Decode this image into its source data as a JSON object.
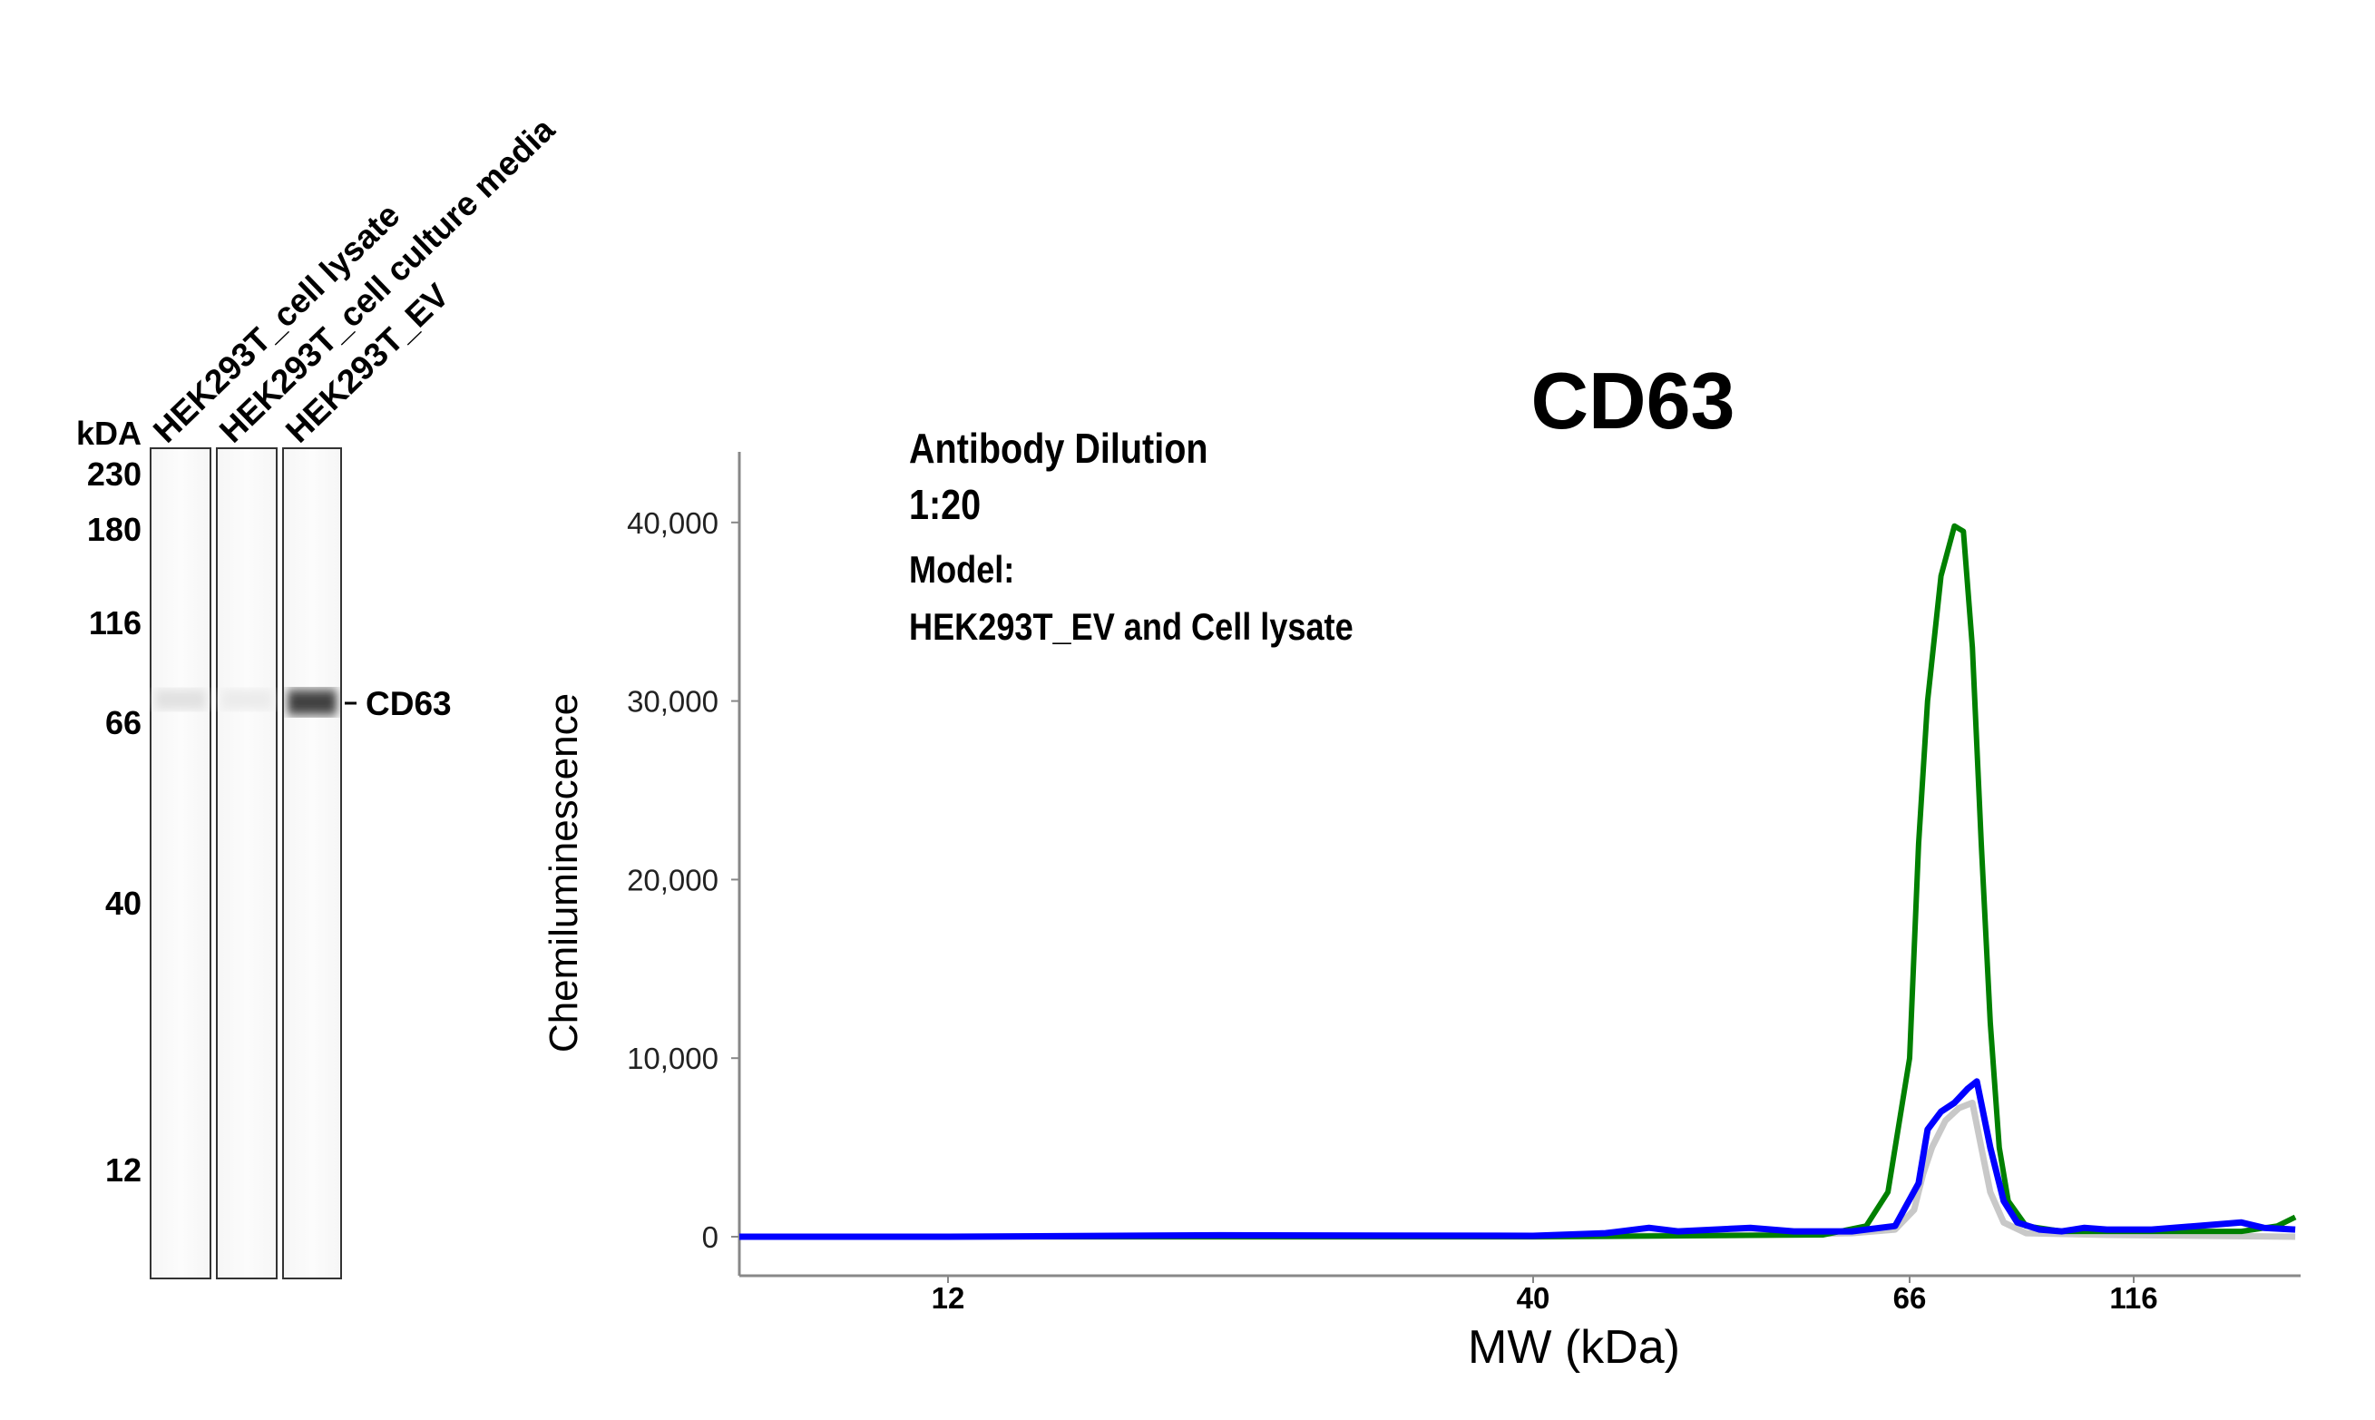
{
  "blot": {
    "unit_label": "kDA",
    "ladder": [
      "230",
      "180",
      "116",
      "66",
      "40",
      "12"
    ],
    "lanes": [
      {
        "label": "HEK293T_cell lysate",
        "band_intensity": 0.12
      },
      {
        "label": "HEK293T_cell culture media",
        "band_intensity": 0.08
      },
      {
        "label": "HEK293T_EV",
        "band_intensity": 0.75
      }
    ],
    "band_label": "CD63"
  },
  "annotations": {
    "line1": "Antibody Dilution",
    "line2": "1:20",
    "line3": "Model:",
    "line4": "HEK293T_EV and Cell lysate"
  },
  "chart_data": {
    "type": "line",
    "title": "CD63",
    "xlabel": "MW (kDa)",
    "ylabel": "Chemiluminescence",
    "x_ticks": [
      "12",
      "40",
      "66",
      "116"
    ],
    "y_ticks": [
      "0",
      "10,000",
      "20,000",
      "30,000",
      "40,000"
    ],
    "ylim": [
      -2000,
      45000
    ],
    "grid": false,
    "series": [
      {
        "color": "#c8c8c8",
        "points": [
          [
            2,
            0
          ],
          [
            12,
            0
          ],
          [
            40,
            0
          ],
          [
            55,
            100
          ],
          [
            62,
            200
          ],
          [
            65,
            400
          ],
          [
            67,
            1500
          ],
          [
            69,
            3500
          ],
          [
            71,
            5000
          ],
          [
            74,
            6500
          ],
          [
            77,
            7200
          ],
          [
            80,
            7500
          ],
          [
            82,
            5000
          ],
          [
            84,
            2500
          ],
          [
            87,
            800
          ],
          [
            92,
            200
          ],
          [
            110,
            100
          ],
          [
            152,
            0
          ]
        ]
      },
      {
        "color": "#008000",
        "points": [
          [
            2,
            0
          ],
          [
            40,
            0
          ],
          [
            60,
            100
          ],
          [
            63,
            600
          ],
          [
            64.5,
            2500
          ],
          [
            66,
            10000
          ],
          [
            68,
            22000
          ],
          [
            70,
            30000
          ],
          [
            73,
            37000
          ],
          [
            76,
            39800
          ],
          [
            78,
            39500
          ],
          [
            80,
            33000
          ],
          [
            82,
            22000
          ],
          [
            84,
            12000
          ],
          [
            86,
            5000
          ],
          [
            88,
            2000
          ],
          [
            92,
            600
          ],
          [
            100,
            300
          ],
          [
            140,
            300
          ],
          [
            148,
            600
          ],
          [
            152,
            1100
          ]
        ]
      },
      {
        "color": "#0000ff",
        "points": [
          [
            2,
            0
          ],
          [
            12,
            0
          ],
          [
            25,
            80
          ],
          [
            40,
            50
          ],
          [
            45,
            200
          ],
          [
            48,
            500
          ],
          [
            50,
            300
          ],
          [
            55,
            500
          ],
          [
            58,
            300
          ],
          [
            62,
            300
          ],
          [
            65,
            600
          ],
          [
            68,
            3000
          ],
          [
            70,
            6000
          ],
          [
            73,
            7000
          ],
          [
            76,
            7500
          ],
          [
            79,
            8300
          ],
          [
            81,
            8700
          ],
          [
            84,
            5000
          ],
          [
            87,
            2000
          ],
          [
            90,
            800
          ],
          [
            95,
            400
          ],
          [
            100,
            300
          ],
          [
            105,
            500
          ],
          [
            110,
            400
          ],
          [
            120,
            400
          ],
          [
            130,
            600
          ],
          [
            140,
            800
          ],
          [
            145,
            500
          ],
          [
            152,
            400
          ]
        ]
      }
    ]
  }
}
